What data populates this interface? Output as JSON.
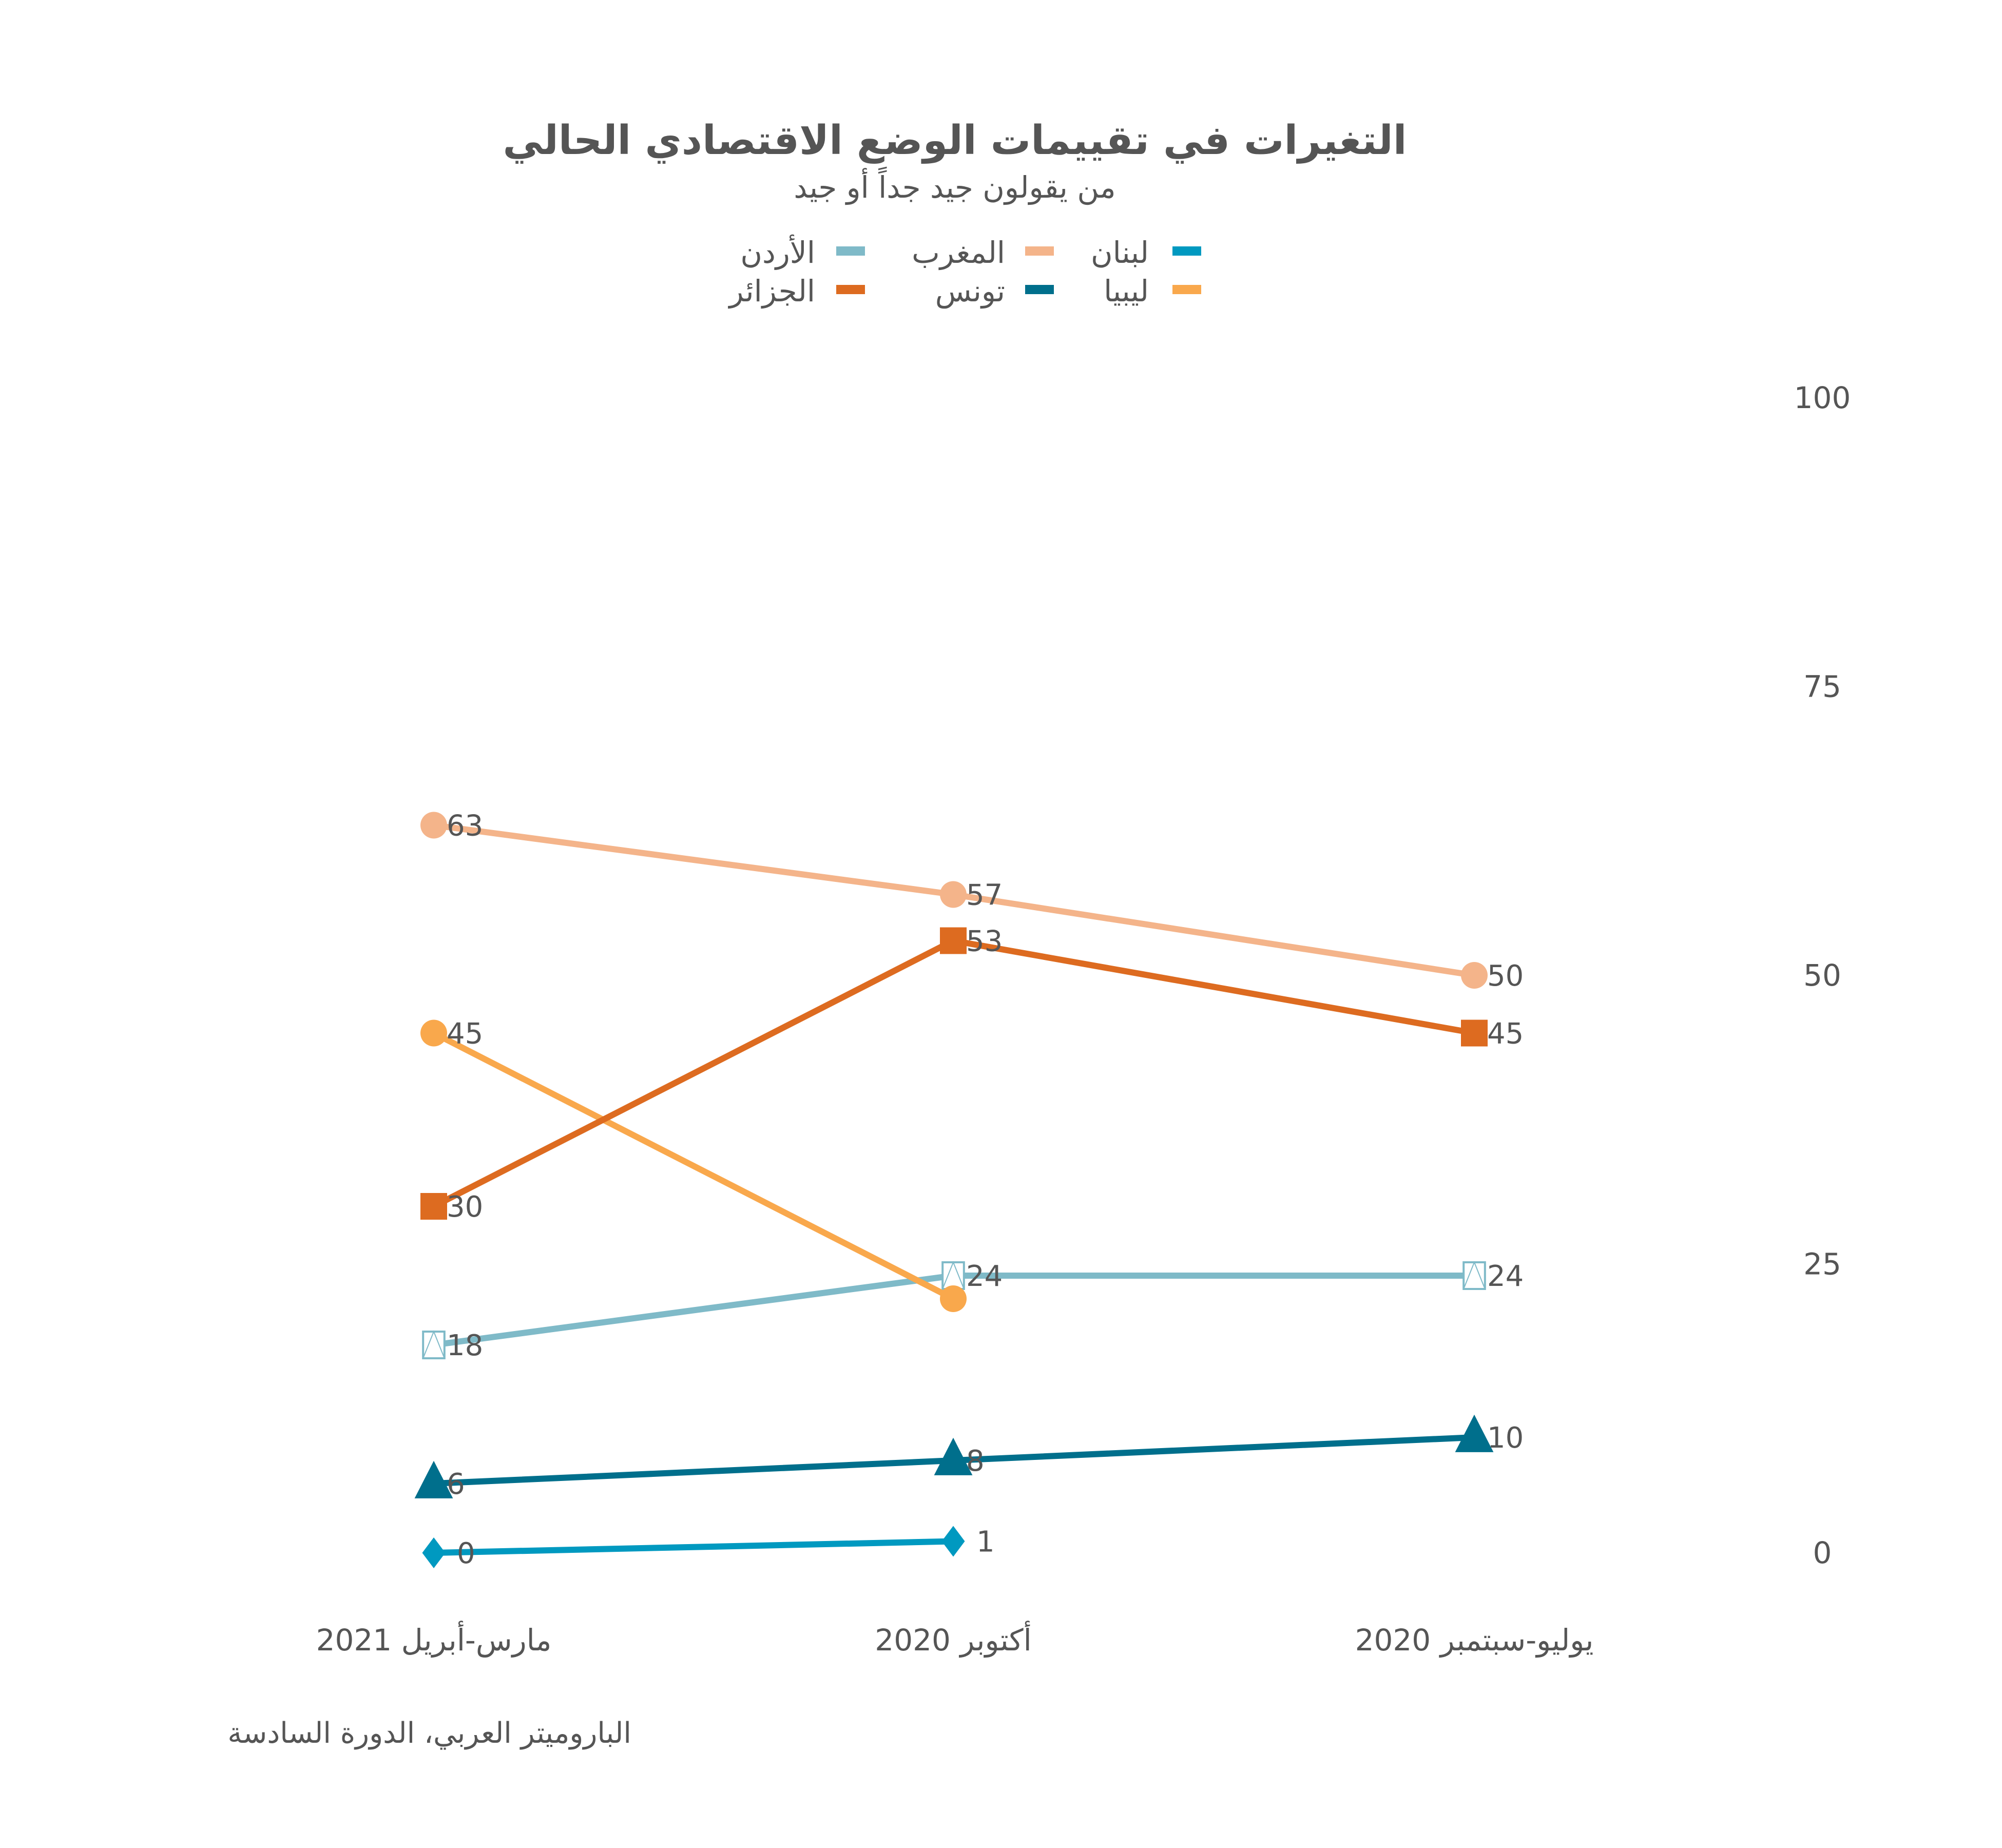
{
  "chart_data": {
    "type": "line",
    "title": "التغيرات في تقييمات الوضع الاقتصادي الحالي",
    "subtitle": "من يقولون جيد جداً أو جيد",
    "source": "الباروميتر العربي، الدورة السادسة",
    "categories": [
      "يوليو-سبتمبر 2020",
      "أكتوبر 2020",
      "مارس-أبريل 2021"
    ],
    "ylim": [
      0,
      100
    ],
    "yticks": [
      "0",
      "25",
      "50",
      "75",
      "100"
    ],
    "legend_position": "top-center",
    "grid": false,
    "series": [
      {
        "name": "لبنان",
        "color": "#0099c0",
        "marker": "diamond",
        "values": [
          null,
          1,
          0
        ],
        "labels": [
          "",
          "1",
          "0"
        ]
      },
      {
        "name": "المغرب",
        "color": "#f4b48a",
        "marker": "circle",
        "values": [
          50,
          57,
          63
        ],
        "labels": [
          "50",
          "57",
          "63"
        ]
      },
      {
        "name": "الأردن",
        "color": "#7fbac8",
        "marker": "open-square",
        "values": [
          24,
          24,
          18
        ],
        "labels": [
          "24",
          "24",
          "18"
        ]
      },
      {
        "name": "ليبيا",
        "color": "#f9a84c",
        "marker": "circle",
        "values": [
          null,
          22,
          45
        ],
        "labels": [
          "",
          "",
          "45"
        ]
      },
      {
        "name": "تونس",
        "color": "#006f8c",
        "marker": "triangle",
        "values": [
          10,
          8,
          6
        ],
        "labels": [
          "10",
          "8",
          "6"
        ]
      },
      {
        "name": "الجزائر",
        "color": "#dd6b20",
        "marker": "square",
        "values": [
          45,
          53,
          30
        ],
        "labels": [
          "45",
          "53",
          "30"
        ]
      }
    ]
  }
}
